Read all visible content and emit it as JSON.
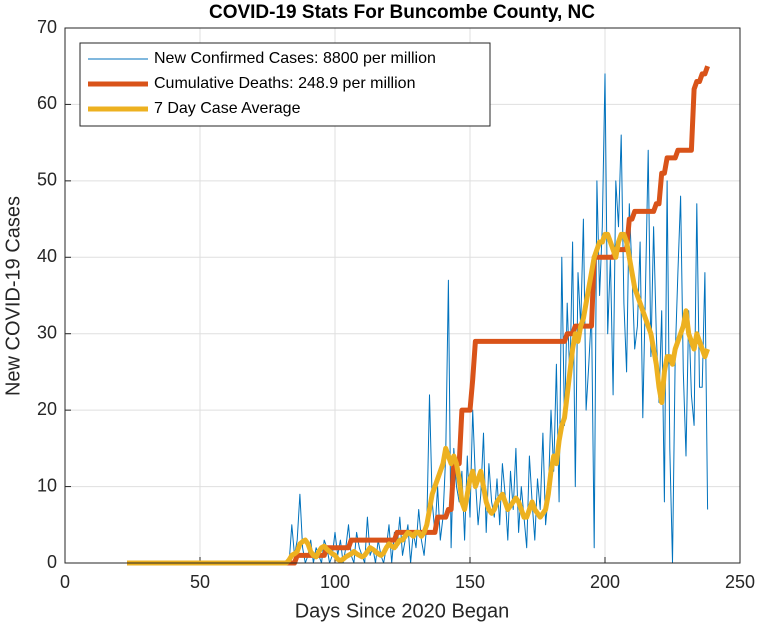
{
  "chart_data": {
    "type": "line",
    "title": "COVID-19 Stats For Buncombe County, NC",
    "x_label": "Days Since 2020 Began",
    "y_label": "New COVID-19 Cases",
    "xlim": [
      0,
      250
    ],
    "xticks": [
      0,
      50,
      100,
      150,
      200,
      250
    ],
    "ylim": [
      0,
      70
    ],
    "yticks": [
      0,
      10,
      20,
      30,
      40,
      50,
      60,
      70
    ],
    "grid": true,
    "legend": "northwest",
    "x": [
      23,
      24,
      25,
      26,
      27,
      28,
      29,
      30,
      31,
      32,
      33,
      34,
      35,
      36,
      37,
      38,
      39,
      40,
      41,
      42,
      43,
      44,
      45,
      46,
      47,
      48,
      49,
      50,
      51,
      52,
      53,
      54,
      55,
      56,
      57,
      58,
      59,
      60,
      61,
      62,
      63,
      64,
      65,
      66,
      67,
      68,
      69,
      70,
      71,
      72,
      73,
      74,
      75,
      76,
      77,
      78,
      79,
      80,
      81,
      82,
      83,
      84,
      85,
      86,
      87,
      88,
      89,
      90,
      91,
      92,
      93,
      94,
      95,
      96,
      97,
      98,
      99,
      100,
      101,
      102,
      103,
      104,
      105,
      106,
      107,
      108,
      109,
      110,
      111,
      112,
      113,
      114,
      115,
      116,
      117,
      118,
      119,
      120,
      121,
      122,
      123,
      124,
      125,
      126,
      127,
      128,
      129,
      130,
      131,
      132,
      133,
      134,
      135,
      136,
      137,
      138,
      139,
      140,
      141,
      142,
      143,
      144,
      145,
      146,
      147,
      148,
      149,
      150,
      151,
      152,
      153,
      154,
      155,
      156,
      157,
      158,
      159,
      160,
      161,
      162,
      163,
      164,
      165,
      166,
      167,
      168,
      169,
      170,
      171,
      172,
      173,
      174,
      175,
      176,
      177,
      178,
      179,
      180,
      181,
      182,
      183,
      184,
      185,
      186,
      187,
      188,
      189,
      190,
      191,
      192,
      193,
      194,
      195,
      196,
      197,
      198,
      199,
      200,
      201,
      202,
      203,
      204,
      205,
      206,
      207,
      208,
      209,
      210,
      211,
      212,
      213,
      214,
      215,
      216,
      217,
      218,
      219,
      220,
      221,
      222,
      223,
      224,
      225,
      226,
      227,
      228,
      229,
      230,
      231,
      232,
      233,
      234,
      235,
      236,
      237,
      238
    ],
    "series": [
      {
        "name": "New Confirmed Cases: 8800 per million",
        "color": "#0072bd",
        "width": 1,
        "values": [
          0,
          0,
          0,
          0,
          0,
          0,
          0,
          0,
          0,
          0,
          0,
          0,
          0,
          0,
          0,
          0,
          0,
          0,
          0,
          0,
          0,
          0,
          0,
          0,
          0,
          0,
          0,
          0,
          0,
          0,
          0,
          0,
          0,
          0,
          0,
          0,
          0,
          0,
          0,
          0,
          0,
          0,
          0,
          0,
          0,
          0,
          0,
          0,
          0,
          0,
          0,
          0,
          0,
          0,
          0,
          0,
          0,
          0,
          0,
          0,
          0,
          5,
          1,
          3,
          9,
          2,
          0,
          1,
          3,
          0,
          2,
          1,
          0,
          3,
          2,
          0,
          1,
          4,
          1,
          3,
          0,
          2,
          5,
          1,
          0,
          4,
          2,
          1,
          0,
          6,
          1,
          2,
          0,
          3,
          1,
          0,
          2,
          5,
          0,
          4,
          2,
          6,
          1,
          3,
          5,
          0,
          4,
          2,
          7,
          3,
          1,
          5,
          22,
          8,
          4,
          10,
          3,
          6,
          14,
          37,
          2,
          15,
          10,
          8,
          12,
          3,
          14,
          6,
          20,
          11,
          5,
          9,
          17,
          4,
          13,
          8,
          6,
          11,
          5,
          13,
          9,
          3,
          12,
          7,
          15,
          4,
          10,
          6,
          2,
          14,
          8,
          3,
          11,
          7,
          17,
          5,
          9,
          20,
          12,
          26,
          8,
          40,
          18,
          34,
          24,
          42,
          10,
          38,
          31,
          45,
          20,
          26,
          33,
          2,
          50,
          35,
          44,
          64,
          30,
          40,
          22,
          50,
          44,
          56,
          34,
          25,
          47,
          38,
          28,
          31,
          42,
          19,
          36,
          54,
          27,
          44,
          30,
          21,
          33,
          8,
          50,
          15,
          0,
          27,
          38,
          48,
          25,
          14,
          33,
          22,
          18,
          47,
          23,
          23,
          38,
          7
        ]
      },
      {
        "name": "Cumulative Deaths: 248.9 per million",
        "color": "#d95319",
        "width": 5,
        "values": [
          0,
          0,
          0,
          0,
          0,
          0,
          0,
          0,
          0,
          0,
          0,
          0,
          0,
          0,
          0,
          0,
          0,
          0,
          0,
          0,
          0,
          0,
          0,
          0,
          0,
          0,
          0,
          0,
          0,
          0,
          0,
          0,
          0,
          0,
          0,
          0,
          0,
          0,
          0,
          0,
          0,
          0,
          0,
          0,
          0,
          0,
          0,
          0,
          0,
          0,
          0,
          0,
          0,
          0,
          0,
          0,
          0,
          0,
          0,
          0,
          0,
          0,
          0,
          1,
          1,
          1,
          1,
          1,
          1,
          1,
          1,
          1,
          1,
          1,
          2,
          2,
          2,
          2,
          2,
          2,
          2,
          2,
          2,
          3,
          3,
          3,
          3,
          3,
          3,
          3,
          3,
          3,
          3,
          3,
          3,
          3,
          3,
          3,
          3,
          3,
          4,
          4,
          4,
          4,
          4,
          4,
          4,
          4,
          4,
          4,
          4,
          4,
          4,
          4,
          4,
          6,
          6,
          6,
          6,
          7,
          7,
          13,
          13,
          13,
          20,
          20,
          20,
          20,
          24,
          29,
          29,
          29,
          29,
          29,
          29,
          29,
          29,
          29,
          29,
          29,
          29,
          29,
          29,
          29,
          29,
          29,
          29,
          29,
          29,
          29,
          29,
          29,
          29,
          29,
          29,
          29,
          29,
          29,
          29,
          29,
          29,
          29,
          29,
          30,
          30,
          30,
          31,
          31,
          31,
          31,
          31,
          31,
          31,
          40,
          40,
          40,
          40,
          40,
          40,
          40,
          40,
          41,
          41,
          41,
          41,
          41,
          45,
          45,
          46,
          46,
          46,
          46,
          46,
          46,
          46,
          46,
          47,
          47,
          51,
          51,
          53,
          53,
          53,
          53,
          54,
          54,
          54,
          54,
          54,
          54,
          62,
          63,
          63,
          64,
          64,
          65
        ]
      },
      {
        "name": "7 Day Case Average",
        "color": "#edb120",
        "width": 5,
        "values": [
          0,
          0,
          0,
          0,
          0,
          0,
          0,
          0,
          0,
          0,
          0,
          0,
          0,
          0,
          0,
          0,
          0,
          0,
          0,
          0,
          0,
          0,
          0,
          0,
          0,
          0,
          0,
          0,
          0,
          0,
          0,
          0,
          0,
          0,
          0,
          0,
          0,
          0,
          0,
          0,
          0,
          0,
          0,
          0,
          0,
          0,
          0,
          0,
          0,
          0,
          0,
          0,
          0,
          0,
          0,
          0,
          0,
          0,
          0,
          0,
          0.4,
          1,
          1.2,
          1.5,
          2.5,
          2.8,
          3,
          2.5,
          1.5,
          1,
          0.8,
          1.5,
          2,
          2.2,
          1.8,
          1.5,
          1.2,
          1,
          0.5,
          0.3,
          0.5,
          0.8,
          1,
          1.2,
          1.5,
          1.2,
          1,
          0.8,
          1,
          1.5,
          2,
          1.8,
          1.5,
          1.2,
          1,
          1.3,
          2,
          2.5,
          2.2,
          2,
          2.5,
          3,
          3,
          3.5,
          4,
          3.8,
          3.5,
          4,
          4,
          3.5,
          4,
          5,
          7,
          9,
          10,
          11,
          12,
          13,
          15,
          14,
          13,
          14,
          13,
          11,
          8,
          7,
          9,
          11,
          12,
          10,
          11,
          12,
          10,
          8,
          7,
          6.5,
          7,
          8,
          8.5,
          9,
          8,
          7,
          7.5,
          8,
          8.5,
          8,
          7,
          6,
          6,
          7,
          8,
          7,
          6.5,
          6,
          6.5,
          7,
          9,
          12,
          14,
          13,
          16,
          18,
          19,
          22,
          25,
          28,
          30,
          29,
          31,
          32,
          34,
          36,
          38,
          40,
          41,
          42,
          42,
          43,
          43,
          42,
          41,
          40,
          42,
          43,
          43,
          42,
          40,
          38,
          36,
          35,
          34,
          33,
          32,
          31,
          30,
          28,
          26,
          23,
          21,
          25,
          27,
          27,
          26,
          28,
          29,
          30,
          31,
          33,
          30,
          29,
          28,
          30,
          29,
          28,
          27,
          28
        ]
      }
    ]
  }
}
